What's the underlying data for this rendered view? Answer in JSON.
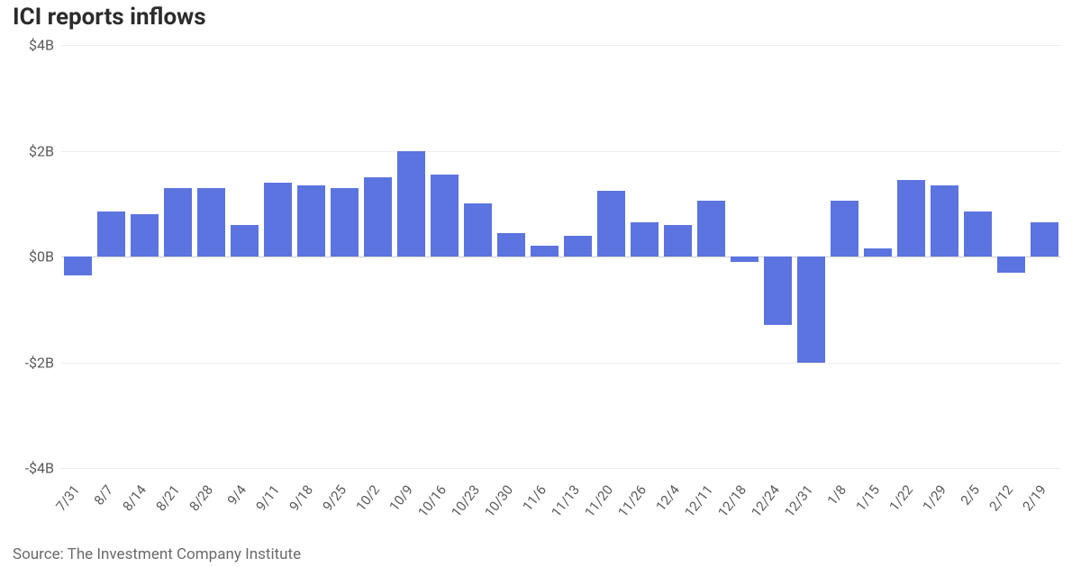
{
  "chart": {
    "type": "bar",
    "title": "ICI reports inflows",
    "title_fontsize": 26,
    "title_color": "#2c2c2c",
    "background_color": "#ffffff",
    "grid_color": "#eeeeee",
    "baseline_color": "#d0d0d0",
    "bar_color": "#5b74e0",
    "tick_label_color": "#5a5a5a",
    "tick_fontsize": 16,
    "x_tick_fontsize": 15,
    "x_tick_rotation_deg": -52,
    "ylim": [
      -4,
      4
    ],
    "ytick_step": 2,
    "ytick_labels": [
      "$4B",
      "$2B",
      "$0B",
      "-$2B",
      "-$4B"
    ],
    "categories": [
      "7/31",
      "8/7",
      "8/14",
      "8/21",
      "8/28",
      "9/4",
      "9/11",
      "9/18",
      "9/25",
      "10/2",
      "10/9",
      "10/16",
      "10/23",
      "10/30",
      "11/6",
      "11/13",
      "11/20",
      "11/26",
      "12/4",
      "12/11",
      "12/18",
      "12/24",
      "12/31",
      "1/8",
      "1/15",
      "1/22",
      "1/29",
      "2/5",
      "2/12",
      "2/19"
    ],
    "values": [
      -0.35,
      0.85,
      0.8,
      1.3,
      1.3,
      0.6,
      1.4,
      1.35,
      1.3,
      1.5,
      2.0,
      1.55,
      1.0,
      0.45,
      0.2,
      0.4,
      1.25,
      0.65,
      0.6,
      1.05,
      -0.1,
      -1.3,
      -2.0,
      1.05,
      0.15,
      1.45,
      1.35,
      0.85,
      -0.3,
      0.65
    ],
    "bar_width_ratio": 0.82
  },
  "source": "Source: The Investment Company Institute"
}
